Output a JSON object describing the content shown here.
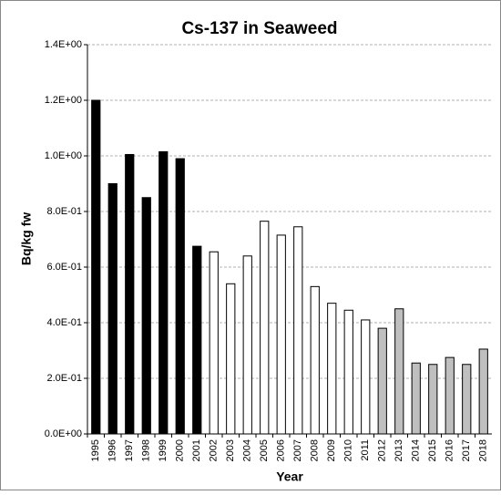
{
  "chart_data": {
    "type": "bar",
    "title": "Cs-137 in Seaweed",
    "x_label": "Year",
    "y_label": "Bq/kg fw",
    "categories": [
      "1995",
      "1996",
      "1997",
      "1998",
      "1999",
      "2000",
      "2001",
      "2002",
      "2003",
      "2004",
      "2005",
      "2006",
      "2007",
      "2008",
      "2009",
      "2010",
      "2011",
      "2012",
      "2013",
      "2014",
      "2015",
      "2016",
      "2017",
      "2018"
    ],
    "values": [
      1.2,
      0.9,
      1.005,
      0.85,
      1.015,
      0.99,
      0.675,
      0.655,
      0.54,
      0.64,
      0.765,
      0.715,
      0.745,
      0.53,
      0.47,
      0.445,
      0.41,
      0.38,
      0.45,
      0.255,
      0.25,
      0.275,
      0.25,
      0.305
    ],
    "colors": [
      "#000000",
      "#000000",
      "#000000",
      "#000000",
      "#000000",
      "#000000",
      "#000000",
      "#ffffff",
      "#ffffff",
      "#ffffff",
      "#ffffff",
      "#ffffff",
      "#ffffff",
      "#ffffff",
      "#ffffff",
      "#ffffff",
      "#ffffff",
      "#bfbfbf",
      "#bfbfbf",
      "#bfbfbf",
      "#bfbfbf",
      "#bfbfbf",
      "#bfbfbf",
      "#bfbfbf"
    ],
    "ylim": [
      0,
      1.4
    ],
    "yticks": [
      {
        "value": 0,
        "label": "0.0E+00"
      },
      {
        "value": 0.2,
        "label": "2.0E-01"
      },
      {
        "value": 0.4,
        "label": "4.0E-01"
      },
      {
        "value": 0.6,
        "label": "6.0E-01"
      },
      {
        "value": 0.8,
        "label": "8.0E-01"
      },
      {
        "value": 1.0,
        "label": "1.0E+00"
      },
      {
        "value": 1.2,
        "label": "1.2E+00"
      },
      {
        "value": 1.4,
        "label": "1.4E+00"
      }
    ],
    "grid": true
  }
}
